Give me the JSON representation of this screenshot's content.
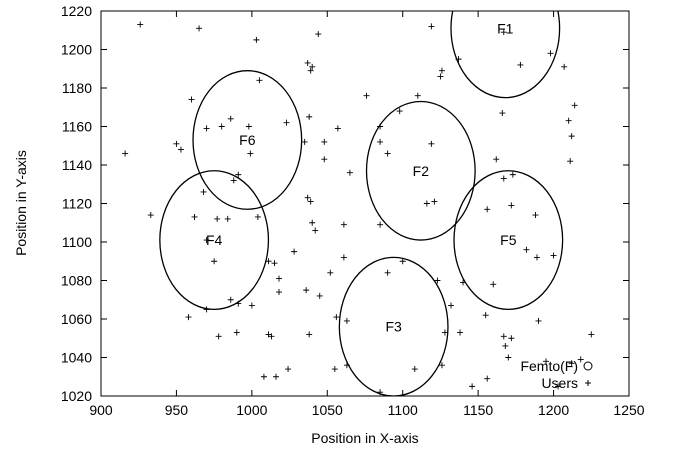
{
  "chart_data": {
    "type": "scatter",
    "title": "",
    "xlabel": "Position in X-axis",
    "ylabel": "Position in Y-axis",
    "xlim": [
      900,
      1250
    ],
    "ylim": [
      1020,
      1220
    ],
    "xticks": [
      900,
      950,
      1000,
      1050,
      1100,
      1150,
      1200,
      1250
    ],
    "yticks": [
      1020,
      1040,
      1060,
      1080,
      1100,
      1120,
      1140,
      1160,
      1180,
      1200,
      1220
    ],
    "grid": false,
    "legend_position": "bottom-right",
    "legend": [
      {
        "label": "Femto(F)",
        "marker": "circle"
      },
      {
        "label": "Users",
        "marker": "plus"
      }
    ],
    "femtocells": [
      {
        "name": "F1",
        "x": 1168,
        "y": 1211,
        "radius": 36
      },
      {
        "name": "F2",
        "x": 1112,
        "y": 1137,
        "radius": 36
      },
      {
        "name": "F3",
        "x": 1094,
        "y": 1056,
        "radius": 36
      },
      {
        "name": "F4",
        "x": 975,
        "y": 1101,
        "radius": 36
      },
      {
        "name": "F5",
        "x": 1170,
        "y": 1101,
        "radius": 36
      },
      {
        "name": "F6",
        "x": 997,
        "y": 1153,
        "radius": 36
      }
    ],
    "users": [
      [
        926,
        1213
      ],
      [
        965,
        1211
      ],
      [
        1003,
        1205
      ],
      [
        1037,
        1193
      ],
      [
        1040,
        1191
      ],
      [
        1039,
        1189
      ],
      [
        1044,
        1208
      ],
      [
        1119,
        1212
      ],
      [
        1167,
        1209
      ],
      [
        1178,
        1192
      ],
      [
        1198,
        1198
      ],
      [
        1207,
        1191
      ],
      [
        960,
        1174
      ],
      [
        986,
        1164
      ],
      [
        970,
        1159
      ],
      [
        980,
        1160
      ],
      [
        1005,
        1184
      ],
      [
        1038,
        1165
      ],
      [
        1048,
        1152
      ],
      [
        1057,
        1159
      ],
      [
        1076,
        1176
      ],
      [
        1085,
        1152
      ],
      [
        1090,
        1146
      ],
      [
        1098,
        1168
      ],
      [
        1110,
        1176
      ],
      [
        1125,
        1186
      ],
      [
        1126,
        1189
      ],
      [
        1137,
        1195
      ],
      [
        1166,
        1167
      ],
      [
        1210,
        1163
      ],
      [
        1212,
        1155
      ],
      [
        1214,
        1171
      ],
      [
        916,
        1146
      ],
      [
        950,
        1151
      ],
      [
        953,
        1148
      ],
      [
        998,
        1160
      ],
      [
        999,
        1146
      ],
      [
        988,
        1132
      ],
      [
        991,
        1135
      ],
      [
        1023,
        1162
      ],
      [
        1035,
        1152
      ],
      [
        1048,
        1143
      ],
      [
        1065,
        1136
      ],
      [
        1085,
        1160
      ],
      [
        1119,
        1151
      ],
      [
        1162,
        1143
      ],
      [
        1211,
        1142
      ],
      [
        1173,
        1135
      ],
      [
        1167,
        1133
      ],
      [
        933,
        1114
      ],
      [
        968,
        1126
      ],
      [
        962,
        1113
      ],
      [
        977,
        1112
      ],
      [
        984,
        1112
      ],
      [
        1004,
        1113
      ],
      [
        1037,
        1123
      ],
      [
        1039,
        1121
      ],
      [
        1040,
        1110
      ],
      [
        1042,
        1106
      ],
      [
        1061,
        1109
      ],
      [
        1085,
        1109
      ],
      [
        1116,
        1120
      ],
      [
        1121,
        1121
      ],
      [
        1156,
        1117
      ],
      [
        1172,
        1119
      ],
      [
        1188,
        1114
      ],
      [
        970,
        1101
      ],
      [
        975,
        1090
      ],
      [
        1011,
        1090
      ],
      [
        1015,
        1089
      ],
      [
        1018,
        1081
      ],
      [
        1028,
        1095
      ],
      [
        1052,
        1084
      ],
      [
        1061,
        1092
      ],
      [
        1090,
        1084
      ],
      [
        1100,
        1090
      ],
      [
        1123,
        1080
      ],
      [
        1140,
        1079
      ],
      [
        1160,
        1078
      ],
      [
        1189,
        1092
      ],
      [
        1200,
        1093
      ],
      [
        1182,
        1096
      ],
      [
        958,
        1061
      ],
      [
        970,
        1065
      ],
      [
        986,
        1070
      ],
      [
        991,
        1068
      ],
      [
        1000,
        1067
      ],
      [
        1018,
        1074
      ],
      [
        1036,
        1075
      ],
      [
        1045,
        1072
      ],
      [
        1038,
        1052
      ],
      [
        1056,
        1061
      ],
      [
        1063,
        1059
      ],
      [
        1132,
        1067
      ],
      [
        1138,
        1053
      ],
      [
        1128,
        1053
      ],
      [
        1155,
        1062
      ],
      [
        1167,
        1051
      ],
      [
        1190,
        1059
      ],
      [
        1225,
        1052
      ],
      [
        978,
        1051
      ],
      [
        990,
        1053
      ],
      [
        1011,
        1052
      ],
      [
        1013,
        1051
      ],
      [
        1008,
        1030
      ],
      [
        1016,
        1030
      ],
      [
        1024,
        1034
      ],
      [
        1055,
        1034
      ],
      [
        1063,
        1036
      ],
      [
        1085,
        1022
      ],
      [
        1108,
        1034
      ],
      [
        1126,
        1036
      ],
      [
        1146,
        1025
      ],
      [
        1156,
        1029
      ],
      [
        1168,
        1046
      ],
      [
        1172,
        1050
      ],
      [
        1170,
        1040
      ],
      [
        1195,
        1038
      ],
      [
        1203,
        1025
      ],
      [
        1212,
        1037
      ],
      [
        1218,
        1039
      ]
    ]
  }
}
